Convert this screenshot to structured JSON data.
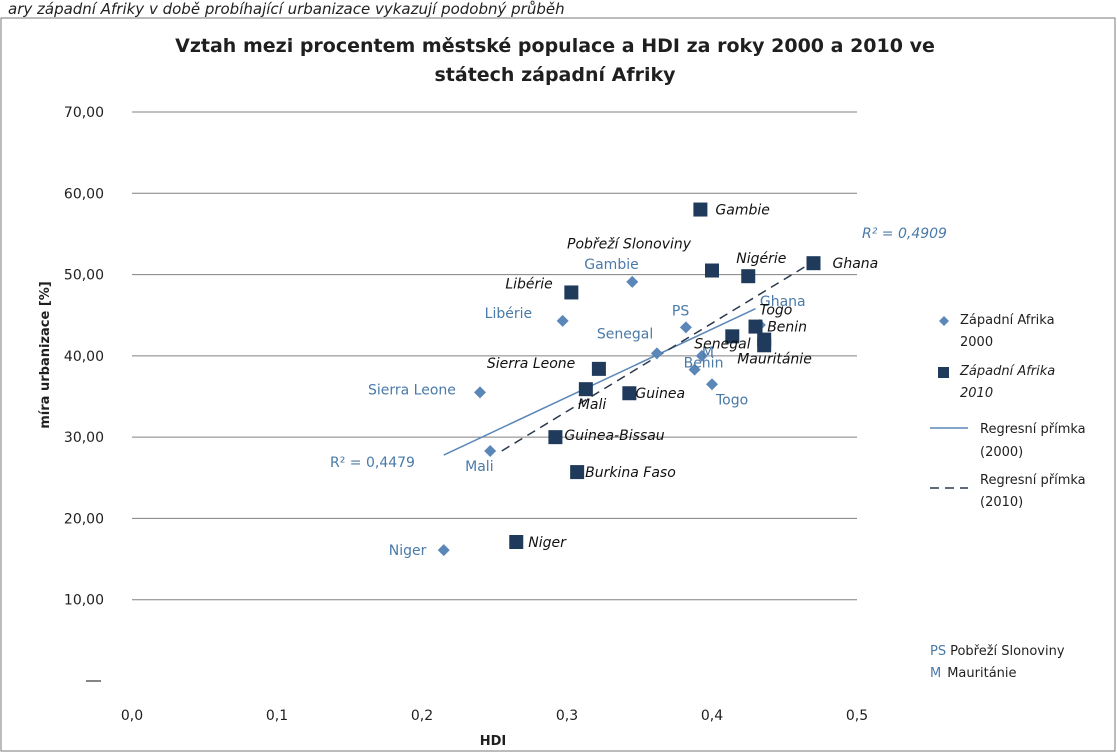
{
  "top_note": "ary západní Afriky v době probíhající urbanizace vykazují podobný průběh",
  "colors": {
    "series2000": "#5b87b8",
    "series2010": "#1f3a5a",
    "trend2000": "#5b87b8",
    "trend2010": "#2b3a4d",
    "grid": "#808080"
  },
  "chart_data": {
    "type": "scatter",
    "title_line1": "Vztah mezi procentem městské populace a HDI za roky 2000 a 2010 ve",
    "title_line2": "státech západní Afriky",
    "xlabel": "HDI",
    "ylabel": "míra urbanizace [%]",
    "xlim": [
      0,
      0.5
    ],
    "ylim": [
      0,
      70
    ],
    "x_ticks": [
      "0,0",
      "0,1",
      "0,2",
      "0,3",
      "0,4",
      "0,5"
    ],
    "y_ticks": [
      "",
      "10,00",
      "20,00",
      "30,00",
      "40,00",
      "50,00",
      "60,00",
      "70,00"
    ],
    "grid": "horizontal",
    "legend_position": "right",
    "series": [
      {
        "name_line1": "Západní Afrika",
        "name_line2": "2000",
        "marker": "diamond",
        "points": [
          {
            "label": "Niger",
            "x": 0.215,
            "y": 16.1
          },
          {
            "label": "Mali",
            "x": 0.247,
            "y": 28.3
          },
          {
            "label": "Sierra Leone",
            "x": 0.24,
            "y": 35.5
          },
          {
            "label": "Libérie",
            "x": 0.297,
            "y": 44.3
          },
          {
            "label": "Gambie",
            "x": 0.345,
            "y": 49.1
          },
          {
            "label": "PS",
            "x": 0.382,
            "y": 43.5
          },
          {
            "label": "Senegal",
            "x": 0.362,
            "y": 40.3
          },
          {
            "label": "Benin",
            "x": 0.388,
            "y": 38.3
          },
          {
            "label": "M",
            "x": 0.393,
            "y": 40.0
          },
          {
            "label": "Togo",
            "x": 0.4,
            "y": 36.5
          },
          {
            "label": "Ghana",
            "x": 0.433,
            "y": 43.8
          }
        ]
      },
      {
        "name_line1": "Západní Afrika",
        "name_line2": "2010",
        "marker": "square",
        "points": [
          {
            "label": "Niger",
            "x": 0.265,
            "y": 17.1
          },
          {
            "label": "Burkina Faso",
            "x": 0.307,
            "y": 25.7
          },
          {
            "label": "Guinea-Bissau",
            "x": 0.292,
            "y": 30.0
          },
          {
            "label": "Mali",
            "x": 0.313,
            "y": 35.9
          },
          {
            "label": "Guinea",
            "x": 0.343,
            "y": 35.4
          },
          {
            "label": "Sierra Leone",
            "x": 0.322,
            "y": 38.4
          },
          {
            "label": "Libérie",
            "x": 0.303,
            "y": 47.8
          },
          {
            "label": "Gambie",
            "x": 0.392,
            "y": 58.0
          },
          {
            "label": "Pobřeží Slonoviny",
            "x": 0.4,
            "y": 50.5
          },
          {
            "label": "Nigérie",
            "x": 0.425,
            "y": 49.8
          },
          {
            "label": "Ghana",
            "x": 0.47,
            "y": 51.4
          },
          {
            "label": "Senegal",
            "x": 0.414,
            "y": 42.4
          },
          {
            "label": "Togo",
            "x": 0.43,
            "y": 43.6
          },
          {
            "label": "Benin",
            "x": 0.436,
            "y": 42.0
          },
          {
            "label": "Mauritánie",
            "x": 0.436,
            "y": 41.3
          }
        ]
      }
    ],
    "trendlines": [
      {
        "series": 0,
        "name_line1": "Regresní přímka",
        "name_line2": "(2000)",
        "style": "solid",
        "x": [
          0.215,
          0.43
        ],
        "y": [
          27.8,
          45.8
        ],
        "r2_label": "R² = 0,4479"
      },
      {
        "series": 1,
        "name_line1": "Regresní přímka",
        "name_line2": "(2010)",
        "style": "dashed",
        "x": [
          0.255,
          0.47
        ],
        "y": [
          28.3,
          51.6
        ],
        "r2_label": "R² = 0,4909"
      }
    ],
    "abbreviations": [
      {
        "code": "PS",
        "text": "Pobřeží Slonoviny"
      },
      {
        "code": "M",
        "text": "Mauritánie"
      }
    ]
  }
}
